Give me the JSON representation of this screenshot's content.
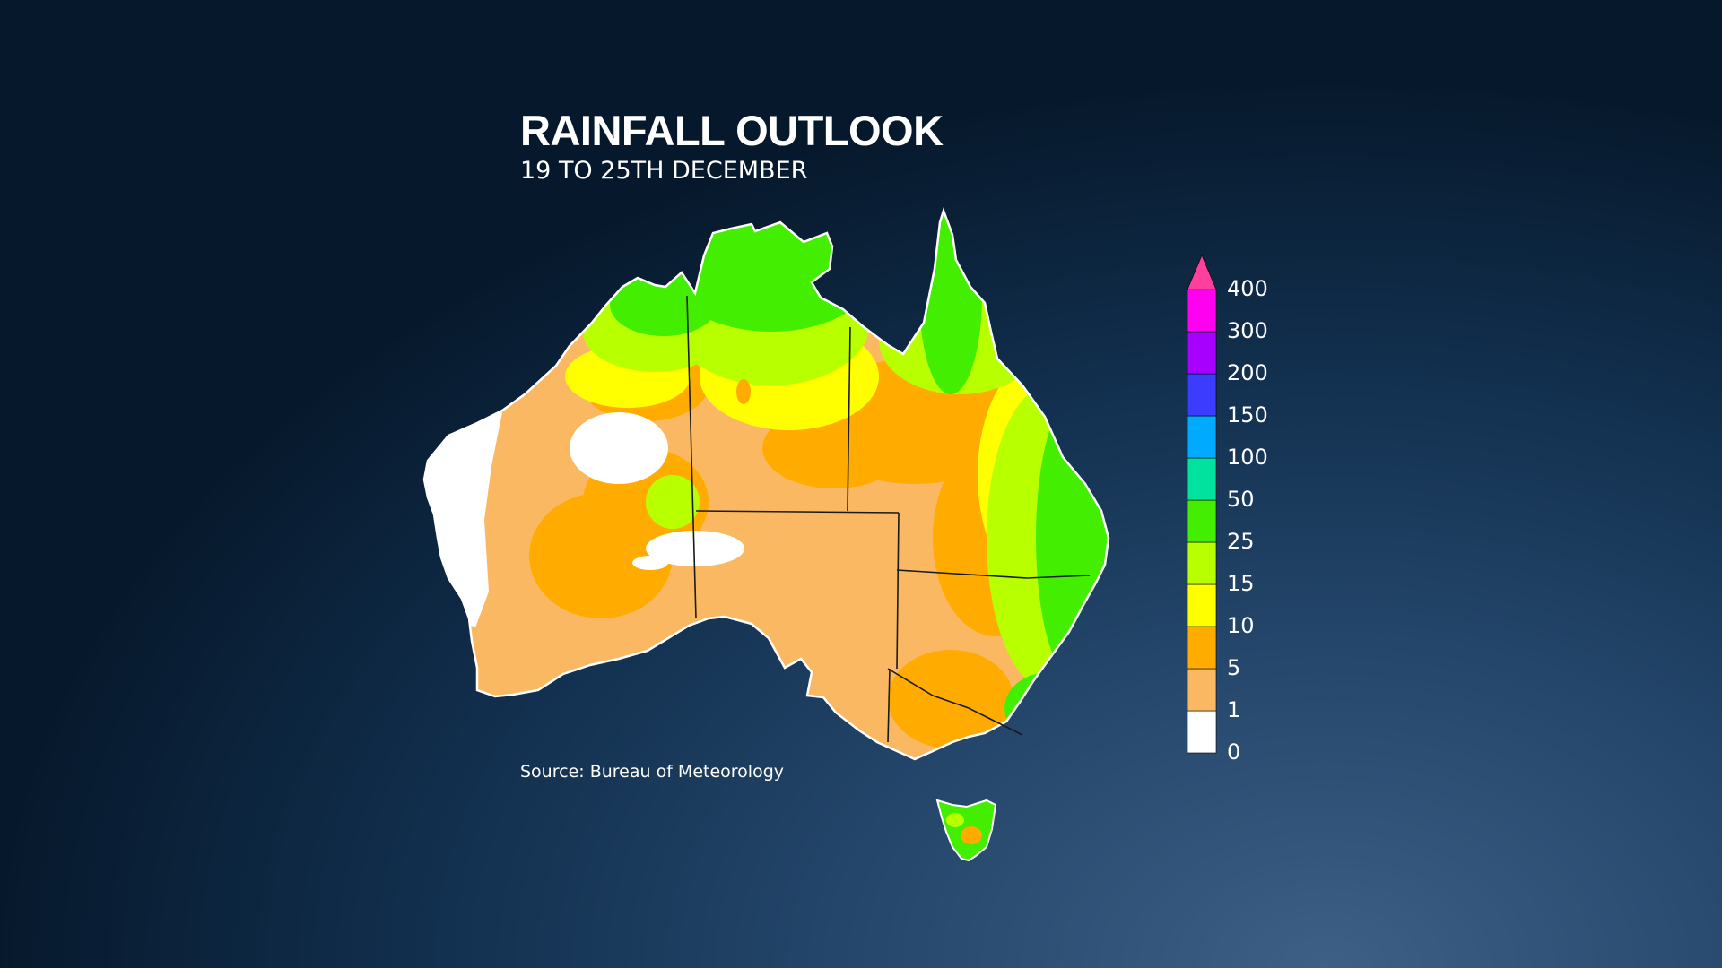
{
  "title": "RAINFALL OUTLOOK",
  "subtitle": "19 TO 25TH DECEMBER",
  "source": "Source: Bureau of Meteorology",
  "legend": {
    "labels": [
      "400",
      "300",
      "200",
      "150",
      "100",
      "50",
      "25",
      "15",
      "10",
      "5",
      "1",
      "0"
    ],
    "bins": [
      {
        "color": "#ffffff"
      },
      {
        "color": "#fbb862"
      },
      {
        "color": "#ffab00"
      },
      {
        "color": "#ffff00"
      },
      {
        "color": "#b8ff00"
      },
      {
        "color": "#44ee00"
      },
      {
        "color": "#00e29e"
      },
      {
        "color": "#00aaff"
      },
      {
        "color": "#3c3cff"
      },
      {
        "color": "#a800ff"
      },
      {
        "color": "#ff00f0"
      }
    ],
    "over_color": "#ff3f9c"
  }
}
